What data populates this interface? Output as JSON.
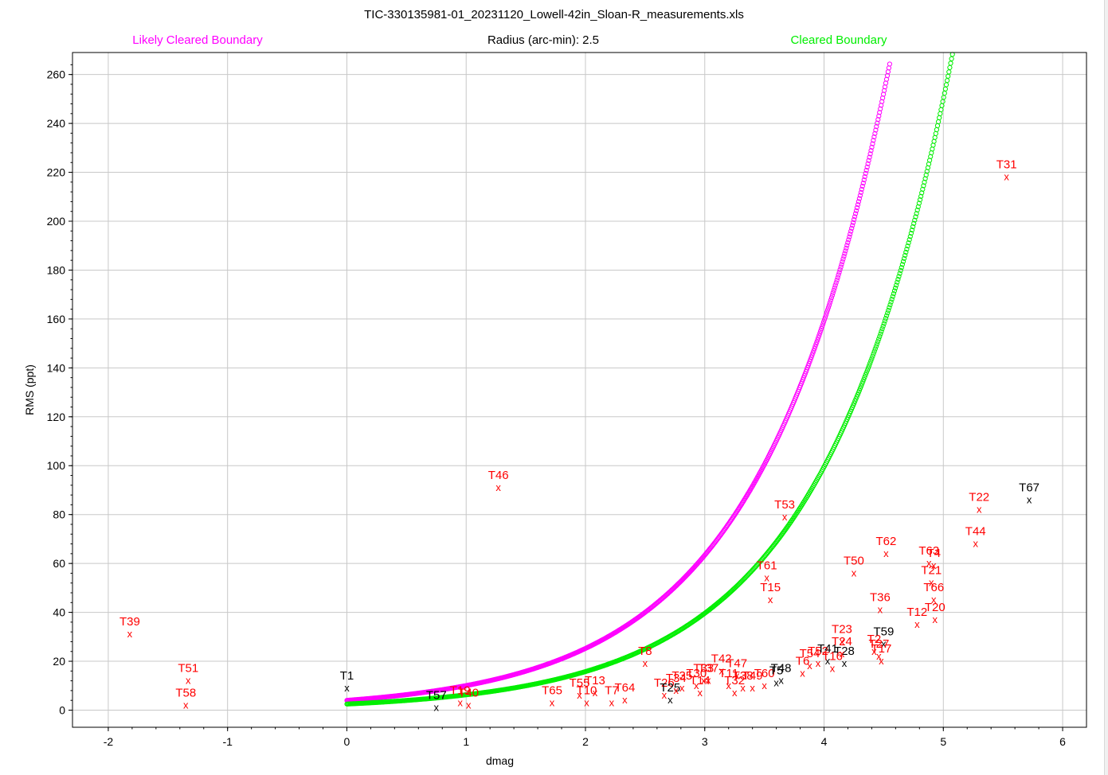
{
  "title": "TIC-330135981-01_20231120_Lowell-42in_Sloan-R_measurements.xls",
  "header": {
    "left_label": "Likely Cleared Boundary",
    "center_label": "Radius (arc-min): 2.5",
    "right_label": "Cleared Boundary"
  },
  "colors": {
    "likely_boundary": "#ff00ff",
    "cleared_boundary": "#00ee00",
    "cleared_star": "#ff0000",
    "other_star": "#000000",
    "grid": "#c8c8c8"
  },
  "chart_data": {
    "type": "scatter",
    "title": "TIC-330135981-01_20231120_Lowell-42in_Sloan-R_measurements.xls",
    "xlabel": "dmag",
    "ylabel": "RMS (ppt)",
    "xlim": [
      -2.3,
      6.2
    ],
    "ylim": [
      -7,
      269
    ],
    "xticks": [
      -2,
      -1,
      0,
      1,
      2,
      3,
      4,
      5,
      6
    ],
    "yticks": [
      0,
      20,
      40,
      60,
      80,
      100,
      120,
      140,
      160,
      180,
      200,
      220,
      240,
      260
    ],
    "grid": true,
    "boundaries": [
      {
        "name": "Likely Cleared Boundary",
        "color": "#ff00ff",
        "base_rms": 4.0,
        "dmag_range": [
          0,
          4.55
        ]
      },
      {
        "name": "Cleared Boundary",
        "color": "#00ee00",
        "base_rms": 2.5,
        "dmag_range": [
          0,
          5.15
        ]
      }
    ],
    "points": [
      {
        "label": "T1",
        "x": 0.0,
        "y": 9,
        "color": "black"
      },
      {
        "label": "T39",
        "x": -1.82,
        "y": 31,
        "color": "red"
      },
      {
        "label": "T51",
        "x": -1.33,
        "y": 12,
        "color": "red"
      },
      {
        "label": "T58",
        "x": -1.35,
        "y": 2,
        "color": "red"
      },
      {
        "label": "T57",
        "x": 0.75,
        "y": 1,
        "color": "black"
      },
      {
        "label": "T19",
        "x": 0.95,
        "y": 3,
        "color": "red"
      },
      {
        "label": "T40",
        "x": 1.02,
        "y": 2,
        "color": "red"
      },
      {
        "label": "T46",
        "x": 1.27,
        "y": 91,
        "color": "red"
      },
      {
        "label": "T65",
        "x": 1.72,
        "y": 3,
        "color": "red"
      },
      {
        "label": "T55",
        "x": 1.95,
        "y": 6,
        "color": "red"
      },
      {
        "label": "T13",
        "x": 2.08,
        "y": 7,
        "color": "red"
      },
      {
        "label": "T10",
        "x": 2.01,
        "y": 3,
        "color": "red"
      },
      {
        "label": "T7",
        "x": 2.22,
        "y": 3,
        "color": "red"
      },
      {
        "label": "T64",
        "x": 2.33,
        "y": 4,
        "color": "red"
      },
      {
        "label": "T8",
        "x": 2.5,
        "y": 19,
        "color": "red"
      },
      {
        "label": "T26",
        "x": 2.66,
        "y": 6,
        "color": "red"
      },
      {
        "label": "T25",
        "x": 2.71,
        "y": 4,
        "color": "black"
      },
      {
        "label": "T34",
        "x": 2.76,
        "y": 8,
        "color": "red"
      },
      {
        "label": "T35",
        "x": 2.81,
        "y": 9,
        "color": "red"
      },
      {
        "label": "T30",
        "x": 2.93,
        "y": 10,
        "color": "red"
      },
      {
        "label": "T14",
        "x": 2.96,
        "y": 7,
        "color": "red"
      },
      {
        "label": "T33",
        "x": 2.99,
        "y": 12,
        "color": "red"
      },
      {
        "label": "T37",
        "x": 3.03,
        "y": 12,
        "color": "red"
      },
      {
        "label": "T42",
        "x": 3.14,
        "y": 16,
        "color": "red"
      },
      {
        "label": "T47",
        "x": 3.27,
        "y": 14,
        "color": "red"
      },
      {
        "label": "T11",
        "x": 3.2,
        "y": 10,
        "color": "red"
      },
      {
        "label": "T38",
        "x": 3.32,
        "y": 9,
        "color": "red"
      },
      {
        "label": "T32",
        "x": 3.25,
        "y": 7,
        "color": "red"
      },
      {
        "label": "T49",
        "x": 3.4,
        "y": 9,
        "color": "red"
      },
      {
        "label": "T60",
        "x": 3.5,
        "y": 10,
        "color": "red"
      },
      {
        "label": "T48",
        "x": 3.64,
        "y": 12,
        "color": "black"
      },
      {
        "label": "T5",
        "x": 3.6,
        "y": 11,
        "color": "black"
      },
      {
        "label": "T61",
        "x": 3.52,
        "y": 54,
        "color": "red"
      },
      {
        "label": "T15",
        "x": 3.55,
        "y": 45,
        "color": "red"
      },
      {
        "label": "T53",
        "x": 3.67,
        "y": 79,
        "color": "red"
      },
      {
        "label": "T6",
        "x": 3.82,
        "y": 15,
        "color": "red"
      },
      {
        "label": "T54",
        "x": 3.88,
        "y": 18,
        "color": "red"
      },
      {
        "label": "T52",
        "x": 3.95,
        "y": 19,
        "color": "red"
      },
      {
        "label": "T41",
        "x": 4.03,
        "y": 20,
        "color": "black"
      },
      {
        "label": "T28",
        "x": 4.17,
        "y": 19,
        "color": "black"
      },
      {
        "label": "T16",
        "x": 4.07,
        "y": 17,
        "color": "red"
      },
      {
        "label": "T23",
        "x": 4.15,
        "y": 28,
        "color": "red"
      },
      {
        "label": "T24",
        "x": 4.15,
        "y": 23,
        "color": "red"
      },
      {
        "label": "T50",
        "x": 4.25,
        "y": 56,
        "color": "red"
      },
      {
        "label": "T2",
        "x": 4.42,
        "y": 24,
        "color": "red"
      },
      {
        "label": "T59",
        "x": 4.5,
        "y": 27,
        "color": "black"
      },
      {
        "label": "T27",
        "x": 4.46,
        "y": 22,
        "color": "red"
      },
      {
        "label": "T17",
        "x": 4.48,
        "y": 20,
        "color": "red"
      },
      {
        "label": "T36",
        "x": 4.47,
        "y": 41,
        "color": "red"
      },
      {
        "label": "T62",
        "x": 4.52,
        "y": 64,
        "color": "red"
      },
      {
        "label": "T12",
        "x": 4.78,
        "y": 35,
        "color": "red"
      },
      {
        "label": "T63",
        "x": 4.88,
        "y": 60,
        "color": "red"
      },
      {
        "label": "T4",
        "x": 4.92,
        "y": 59,
        "color": "red"
      },
      {
        "label": "T21",
        "x": 4.9,
        "y": 52,
        "color": "red"
      },
      {
        "label": "T66",
        "x": 4.92,
        "y": 45,
        "color": "red"
      },
      {
        "label": "T20",
        "x": 4.93,
        "y": 37,
        "color": "red"
      },
      {
        "label": "T22",
        "x": 5.3,
        "y": 82,
        "color": "red"
      },
      {
        "label": "T44",
        "x": 5.27,
        "y": 68,
        "color": "red"
      },
      {
        "label": "T31",
        "x": 5.53,
        "y": 218,
        "color": "red"
      },
      {
        "label": "T67",
        "x": 5.72,
        "y": 86,
        "color": "black"
      }
    ]
  }
}
